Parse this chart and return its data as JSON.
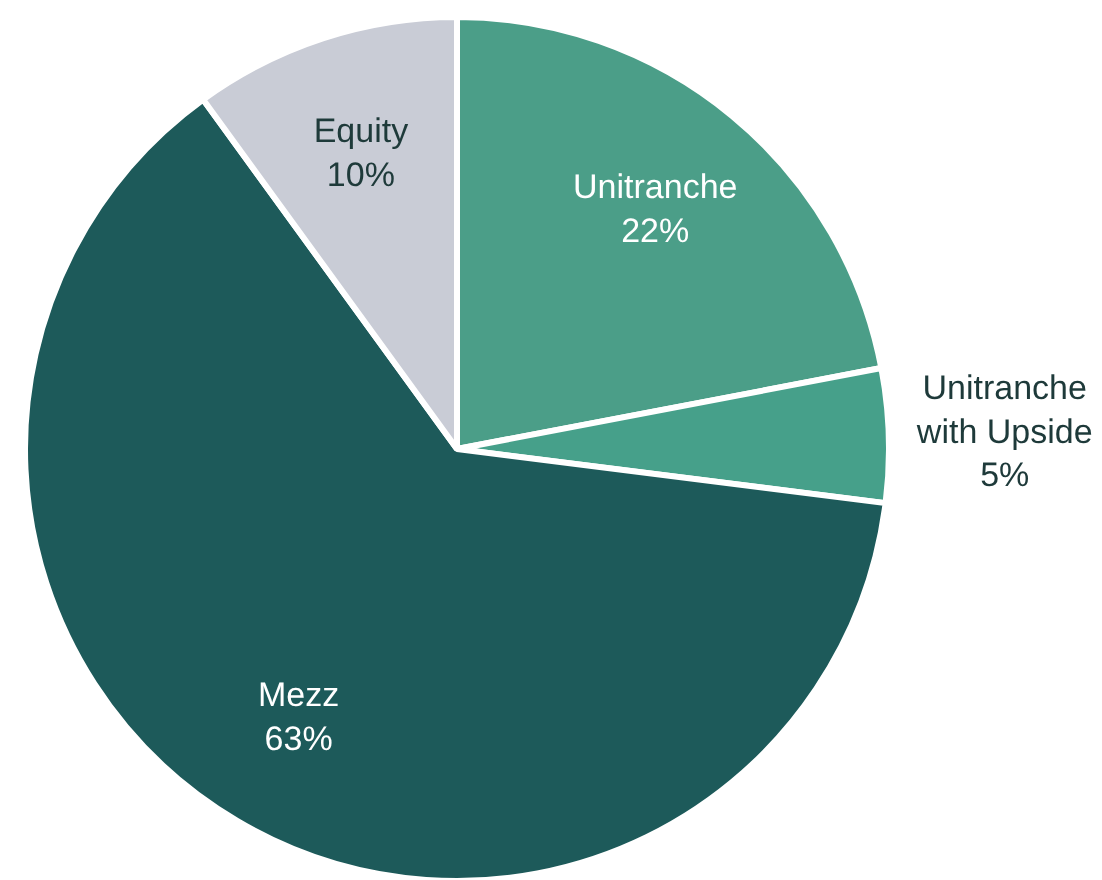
{
  "chart_data": {
    "type": "pie",
    "categories": [
      "Unitranche",
      "Unitranche\nwith Upside",
      "Mezz",
      "Equity"
    ],
    "values": [
      22,
      5,
      63,
      10
    ],
    "colors": [
      "#4b9e88",
      "#46a08a",
      "#1d5a5a",
      "#c9ccd6"
    ],
    "value_labels": [
      "22%",
      "5%",
      "63%",
      "10%"
    ]
  }
}
